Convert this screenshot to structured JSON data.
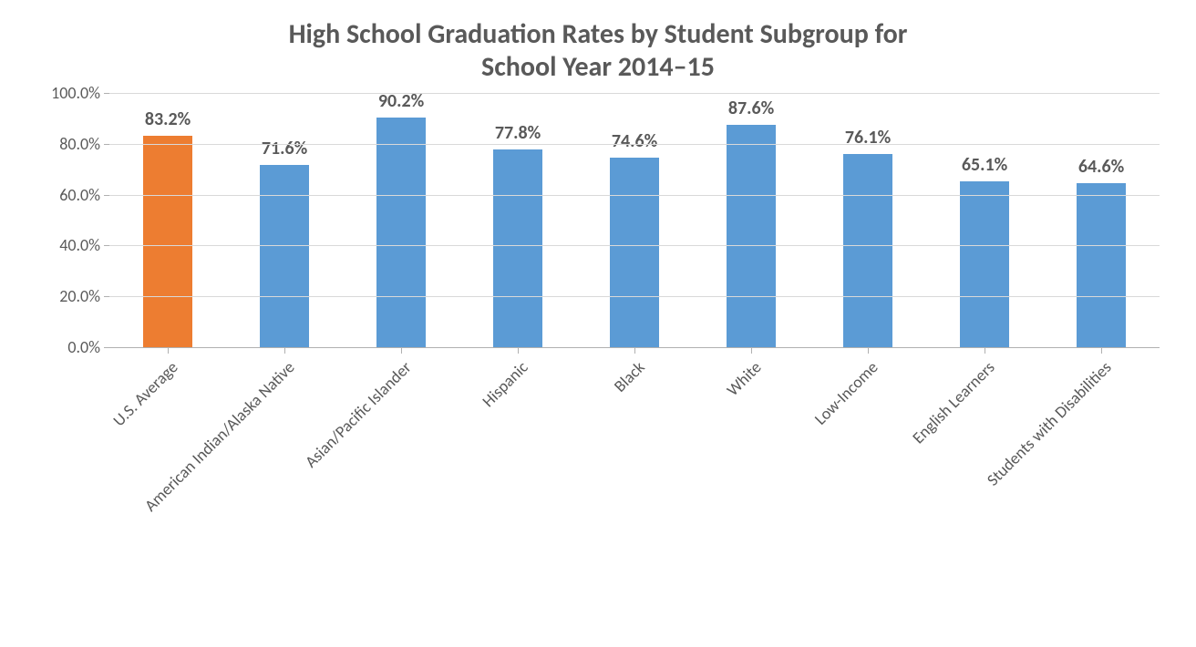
{
  "chart": {
    "type": "bar",
    "title_line1": "High School Graduation Rates by Student Subgroup for",
    "title_line2": "School Year 2014–15",
    "title_fontsize": 30,
    "title_color": "#595959",
    "background_color": "#ffffff",
    "grid_color": "#d9d9d9",
    "axis_line_color": "#b0b0b0",
    "text_color": "#595959",
    "ylim_min": 0,
    "ylim_max": 100,
    "ytick_step": 20,
    "ytick_labels": [
      "0.0%",
      "20.0%",
      "40.0%",
      "60.0%",
      "80.0%",
      "100.0%"
    ],
    "ytick_fontsize": 18,
    "xtick_fontsize": 18,
    "xtick_rotation_deg": -45,
    "datalabel_fontsize": 20,
    "datalabel_fontweight": "700",
    "bar_width_pct": 42,
    "categories": [
      "U.S. Average",
      "American Indian/Alaska Native",
      "Asian/Pacific Islander",
      "Hispanic",
      "Black",
      "White",
      "Low-Income",
      "English Learners",
      "Students with Disabilities"
    ],
    "values": [
      83.2,
      71.6,
      90.2,
      77.8,
      74.6,
      87.6,
      76.1,
      65.1,
      64.6
    ],
    "value_labels": [
      "83.2%",
      "71.6%",
      "90.2%",
      "77.8%",
      "74.6%",
      "87.6%",
      "76.1%",
      "65.1%",
      "64.6%"
    ],
    "bar_colors": [
      "#ed7d31",
      "#5b9bd5",
      "#5b9bd5",
      "#5b9bd5",
      "#5b9bd5",
      "#5b9bd5",
      "#5b9bd5",
      "#5b9bd5",
      "#5b9bd5"
    ]
  }
}
